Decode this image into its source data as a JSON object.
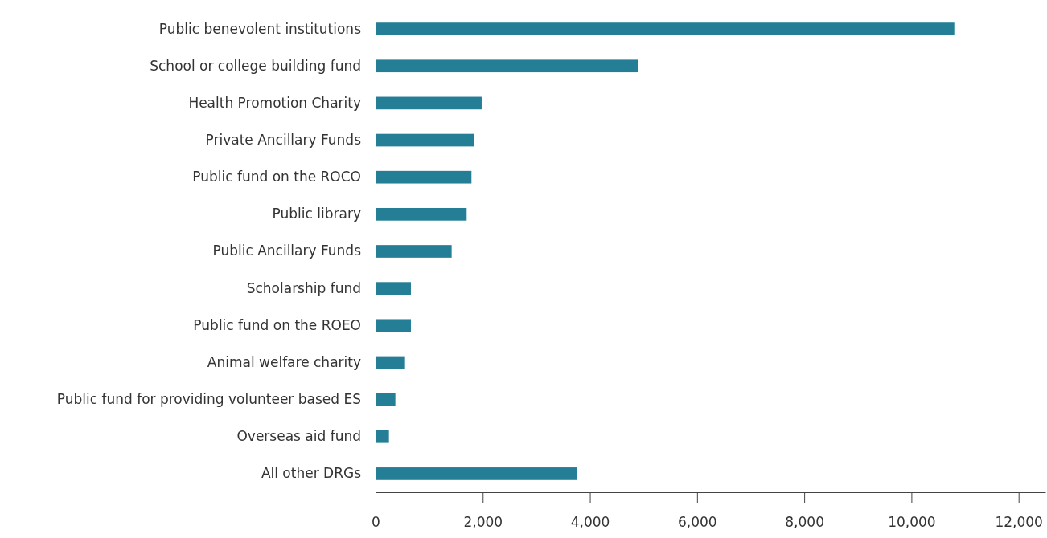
{
  "chart_data": {
    "type": "bar",
    "orientation": "horizontal",
    "categories": [
      "Public benevolent institutions",
      "School or college building fund",
      "Health Promotion Charity",
      "Private Ancillary Funds",
      "Public fund on the ROCO",
      "Public library",
      "Public Ancillary Funds",
      "Scholarship fund",
      "Public fund on the ROEO",
      "Animal welfare charity",
      "Public fund for providing volunteer based ES",
      "Overseas aid fund",
      "All other DRGs"
    ],
    "values": [
      10800,
      4900,
      1980,
      1840,
      1790,
      1700,
      1420,
      660,
      660,
      550,
      370,
      250,
      3760
    ],
    "color": "#237e96",
    "xlim": [
      0,
      12500
    ],
    "xticks": [
      {
        "value": 0,
        "label": "0"
      },
      {
        "value": 2000,
        "label": "2,000"
      },
      {
        "value": 4000,
        "label": "4,000"
      },
      {
        "value": 6000,
        "label": "6,000"
      },
      {
        "value": 8000,
        "label": "8,000"
      },
      {
        "value": 10000,
        "label": "10,000"
      },
      {
        "value": 12000,
        "label": "12,000"
      }
    ],
    "grid": false
  }
}
